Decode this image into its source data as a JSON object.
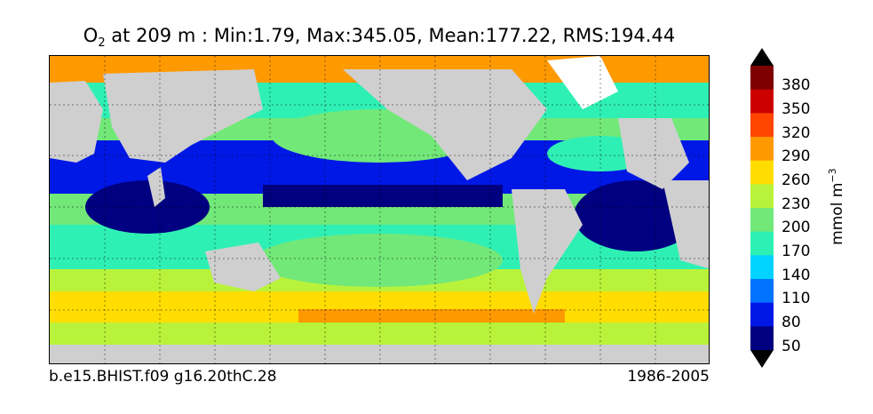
{
  "title": {
    "species": "O",
    "species_sub": "2",
    "rest": " at 209 m : Min:1.79, Max:345.05, Mean:177.22, RMS:194.44"
  },
  "caption_left": "b.e15.BHIST.f09 g16.20thC.28",
  "caption_right": "1986-2005",
  "colorbar": {
    "unit": "mmol m",
    "unit_exp": "−3",
    "ticks": [
      "380",
      "350",
      "320",
      "290",
      "260",
      "230",
      "200",
      "170",
      "140",
      "110",
      "80",
      "50"
    ],
    "colors": [
      "#7f0000",
      "#cc0000",
      "#ff4500",
      "#ff9900",
      "#ffdd00",
      "#b9f23a",
      "#72e879",
      "#2ff0b4",
      "#00d3ff",
      "#0073ff",
      "#0018e6",
      "#000080"
    ],
    "extend": "both"
  },
  "map": {
    "land_color": "#cfcfcf",
    "sea_ice_color": "#ffffff",
    "gridlines": "dotted"
  }
}
